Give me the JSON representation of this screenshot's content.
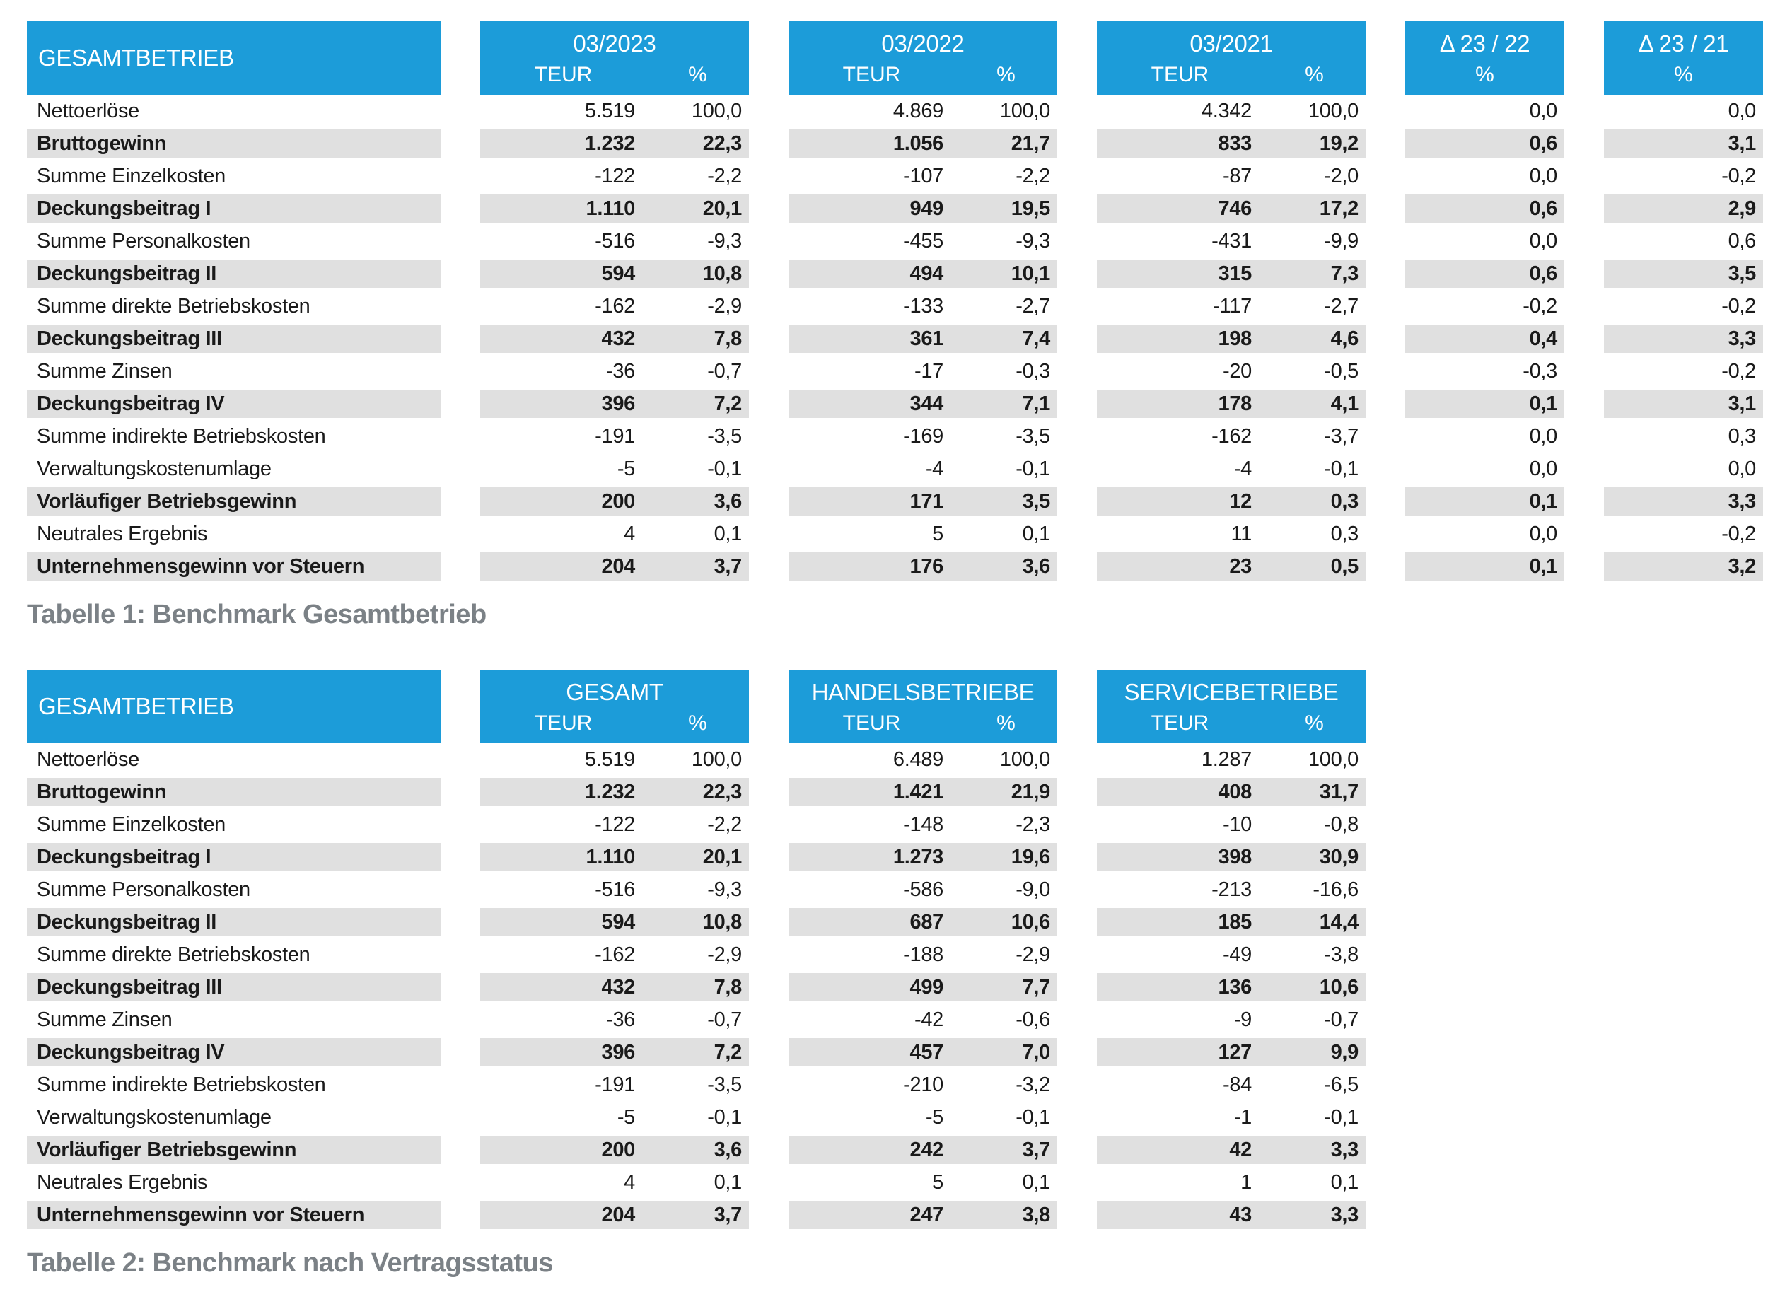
{
  "colors": {
    "header_blue": "#1C9CD9",
    "stripe_gray": "#E0E0E0",
    "caption_gray": "#7B8186",
    "text": "#1A1A1A"
  },
  "tables": [
    {
      "corner_label": "GESAMTBETRIEB",
      "caption": "Tabelle 1: Benchmark Gesamtbetrieb",
      "groups": [
        {
          "title": "03/2023",
          "cols": [
            "TEUR",
            "%"
          ]
        },
        {
          "title": "03/2022",
          "cols": [
            "TEUR",
            "%"
          ]
        },
        {
          "title": "03/2021",
          "cols": [
            "TEUR",
            "%"
          ]
        },
        {
          "title": "Δ 23 / 22",
          "cols": [
            "%"
          ]
        },
        {
          "title": "Δ 23 / 21",
          "cols": [
            "%"
          ]
        }
      ],
      "rows": [
        {
          "label": "Nettoerlöse",
          "bold": false,
          "values": [
            "5.519",
            "100,0",
            "4.869",
            "100,0",
            "4.342",
            "100,0",
            "0,0",
            "0,0"
          ]
        },
        {
          "label": "Bruttogewinn",
          "bold": true,
          "values": [
            "1.232",
            "22,3",
            "1.056",
            "21,7",
            "833",
            "19,2",
            "0,6",
            "3,1"
          ]
        },
        {
          "label": "Summe Einzelkosten",
          "bold": false,
          "values": [
            "-122",
            "-2,2",
            "-107",
            "-2,2",
            "-87",
            "-2,0",
            "0,0",
            "-0,2"
          ]
        },
        {
          "label": "Deckungsbeitrag I",
          "bold": true,
          "values": [
            "1.110",
            "20,1",
            "949",
            "19,5",
            "746",
            "17,2",
            "0,6",
            "2,9"
          ]
        },
        {
          "label": "Summe Personalkosten",
          "bold": false,
          "values": [
            "-516",
            "-9,3",
            "-455",
            "-9,3",
            "-431",
            "-9,9",
            "0,0",
            "0,6"
          ]
        },
        {
          "label": "Deckungsbeitrag II",
          "bold": true,
          "values": [
            "594",
            "10,8",
            "494",
            "10,1",
            "315",
            "7,3",
            "0,6",
            "3,5"
          ]
        },
        {
          "label": "Summe direkte Betriebskosten",
          "bold": false,
          "values": [
            "-162",
            "-2,9",
            "-133",
            "-2,7",
            "-117",
            "-2,7",
            "-0,2",
            "-0,2"
          ]
        },
        {
          "label": "Deckungsbeitrag III",
          "bold": true,
          "values": [
            "432",
            "7,8",
            "361",
            "7,4",
            "198",
            "4,6",
            "0,4",
            "3,3"
          ]
        },
        {
          "label": "Summe Zinsen",
          "bold": false,
          "values": [
            "-36",
            "-0,7",
            "-17",
            "-0,3",
            "-20",
            "-0,5",
            "-0,3",
            "-0,2"
          ]
        },
        {
          "label": "Deckungsbeitrag IV",
          "bold": true,
          "values": [
            "396",
            "7,2",
            "344",
            "7,1",
            "178",
            "4,1",
            "0,1",
            "3,1"
          ]
        },
        {
          "label": "Summe indirekte Betriebskosten",
          "bold": false,
          "values": [
            "-191",
            "-3,5",
            "-169",
            "-3,5",
            "-162",
            "-3,7",
            "0,0",
            "0,3"
          ]
        },
        {
          "label": "Verwaltungskostenumlage",
          "bold": false,
          "values": [
            "-5",
            "-0,1",
            "-4",
            "-0,1",
            "-4",
            "-0,1",
            "0,0",
            "0,0"
          ]
        },
        {
          "label": "Vorläufiger Betriebsgewinn",
          "bold": true,
          "values": [
            "200",
            "3,6",
            "171",
            "3,5",
            "12",
            "0,3",
            "0,1",
            "3,3"
          ]
        },
        {
          "label": "Neutrales Ergebnis",
          "bold": false,
          "values": [
            "4",
            "0,1",
            "5",
            "0,1",
            "11",
            "0,3",
            "0,0",
            "-0,2"
          ]
        },
        {
          "label": "Unternehmensgewinn vor Steuern",
          "bold": true,
          "values": [
            "204",
            "3,7",
            "176",
            "3,6",
            "23",
            "0,5",
            "0,1",
            "3,2"
          ]
        }
      ]
    },
    {
      "corner_label": "GESAMTBETRIEB",
      "caption": "Tabelle 2: Benchmark nach Vertragsstatus",
      "groups": [
        {
          "title": "GESAMT",
          "cols": [
            "TEUR",
            "%"
          ]
        },
        {
          "title": "HANDELSBETRIEBE",
          "cols": [
            "TEUR",
            "%"
          ]
        },
        {
          "title": "SERVICEBETRIEBE",
          "cols": [
            "TEUR",
            "%"
          ]
        }
      ],
      "rows": [
        {
          "label": "Nettoerlöse",
          "bold": false,
          "values": [
            "5.519",
            "100,0",
            "6.489",
            "100,0",
            "1.287",
            "100,0"
          ]
        },
        {
          "label": "Bruttogewinn",
          "bold": true,
          "values": [
            "1.232",
            "22,3",
            "1.421",
            "21,9",
            "408",
            "31,7"
          ]
        },
        {
          "label": "Summe Einzelkosten",
          "bold": false,
          "values": [
            "-122",
            "-2,2",
            "-148",
            "-2,3",
            "-10",
            "-0,8"
          ]
        },
        {
          "label": "Deckungsbeitrag I",
          "bold": true,
          "values": [
            "1.110",
            "20,1",
            "1.273",
            "19,6",
            "398",
            "30,9"
          ]
        },
        {
          "label": "Summe Personalkosten",
          "bold": false,
          "values": [
            "-516",
            "-9,3",
            "-586",
            "-9,0",
            "-213",
            "-16,6"
          ]
        },
        {
          "label": "Deckungsbeitrag II",
          "bold": true,
          "values": [
            "594",
            "10,8",
            "687",
            "10,6",
            "185",
            "14,4"
          ]
        },
        {
          "label": "Summe direkte Betriebskosten",
          "bold": false,
          "values": [
            "-162",
            "-2,9",
            "-188",
            "-2,9",
            "-49",
            "-3,8"
          ]
        },
        {
          "label": "Deckungsbeitrag III",
          "bold": true,
          "values": [
            "432",
            "7,8",
            "499",
            "7,7",
            "136",
            "10,6"
          ]
        },
        {
          "label": "Summe Zinsen",
          "bold": false,
          "values": [
            "-36",
            "-0,7",
            "-42",
            "-0,6",
            "-9",
            "-0,7"
          ]
        },
        {
          "label": "Deckungsbeitrag IV",
          "bold": true,
          "values": [
            "396",
            "7,2",
            "457",
            "7,0",
            "127",
            "9,9"
          ]
        },
        {
          "label": "Summe indirekte Betriebskosten",
          "bold": false,
          "values": [
            "-191",
            "-3,5",
            "-210",
            "-3,2",
            "-84",
            "-6,5"
          ]
        },
        {
          "label": "Verwaltungskostenumlage",
          "bold": false,
          "values": [
            "-5",
            "-0,1",
            "-5",
            "-0,1",
            "-1",
            "-0,1"
          ]
        },
        {
          "label": "Vorläufiger Betriebsgewinn",
          "bold": true,
          "values": [
            "200",
            "3,6",
            "242",
            "3,7",
            "42",
            "3,3"
          ]
        },
        {
          "label": "Neutrales Ergebnis",
          "bold": false,
          "values": [
            "4",
            "0,1",
            "5",
            "0,1",
            "1",
            "0,1"
          ]
        },
        {
          "label": "Unternehmensgewinn vor Steuern",
          "bold": true,
          "values": [
            "204",
            "3,7",
            "247",
            "3,8",
            "43",
            "3,3"
          ]
        }
      ]
    }
  ]
}
